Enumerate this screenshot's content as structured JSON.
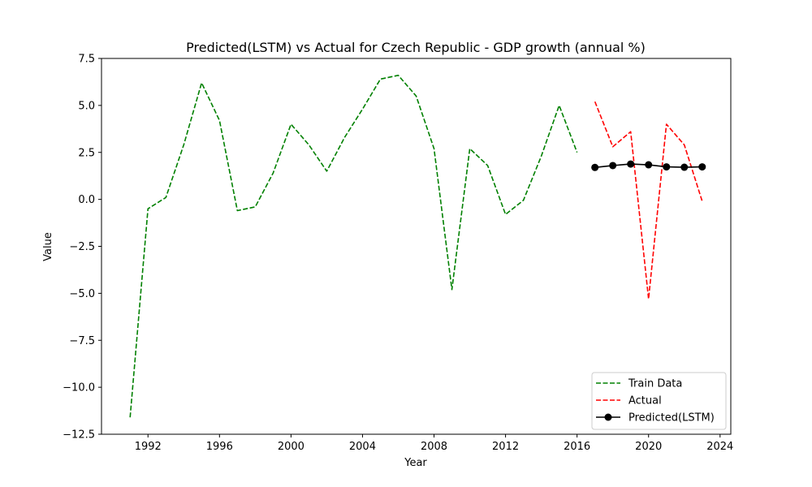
{
  "chart_data": {
    "type": "line",
    "title": "Predicted(LSTM) vs Actual for Czech Republic - GDP growth (annual %)",
    "xlabel": "Year",
    "ylabel": "Value",
    "xlim": [
      1989.4,
      2024.6
    ],
    "ylim": [
      -12.5,
      7.5
    ],
    "x_ticks": [
      1992,
      1996,
      2000,
      2004,
      2008,
      2012,
      2016,
      2020,
      2024
    ],
    "y_ticks": [
      7.5,
      5.0,
      2.5,
      0.0,
      -2.5,
      -5.0,
      -7.5,
      -10.0,
      -12.5
    ],
    "y_tick_labels": [
      "7.5",
      "5.0",
      "2.5",
      "0.0",
      "−2.5",
      "−5.0",
      "−7.5",
      "−10.0",
      "−12.5"
    ],
    "legend_position": "lower-right",
    "grid": false,
    "series": [
      {
        "name": "Train Data",
        "color": "#008000",
        "style": "dashed",
        "marker": "none",
        "x": [
          1991,
          1992,
          1993,
          1994,
          1995,
          1996,
          1997,
          1998,
          1999,
          2000,
          2001,
          2002,
          2003,
          2004,
          2005,
          2006,
          2007,
          2008,
          2009,
          2010,
          2011,
          2012,
          2013,
          2014,
          2015,
          2016
        ],
        "y": [
          -11.6,
          -0.5,
          0.1,
          2.9,
          6.2,
          4.2,
          -0.6,
          -0.4,
          1.4,
          4.0,
          2.9,
          1.5,
          3.3,
          4.8,
          6.4,
          6.6,
          5.5,
          2.7,
          -4.8,
          2.7,
          1.8,
          -0.8,
          -0.05,
          2.3,
          5.0,
          2.5
        ]
      },
      {
        "name": "Actual",
        "color": "#ff0000",
        "style": "dashed",
        "marker": "none",
        "x": [
          2017,
          2018,
          2019,
          2020,
          2021,
          2022,
          2023
        ],
        "y": [
          5.2,
          2.8,
          3.6,
          -5.3,
          4.0,
          2.9,
          -0.1
        ]
      },
      {
        "name": "Predicted(LSTM)",
        "color": "#000000",
        "style": "solid",
        "marker": "circle",
        "x": [
          2017,
          2018,
          2019,
          2020,
          2021,
          2022,
          2023
        ],
        "y": [
          1.7,
          1.8,
          1.88,
          1.84,
          1.73,
          1.71,
          1.73
        ]
      }
    ]
  }
}
